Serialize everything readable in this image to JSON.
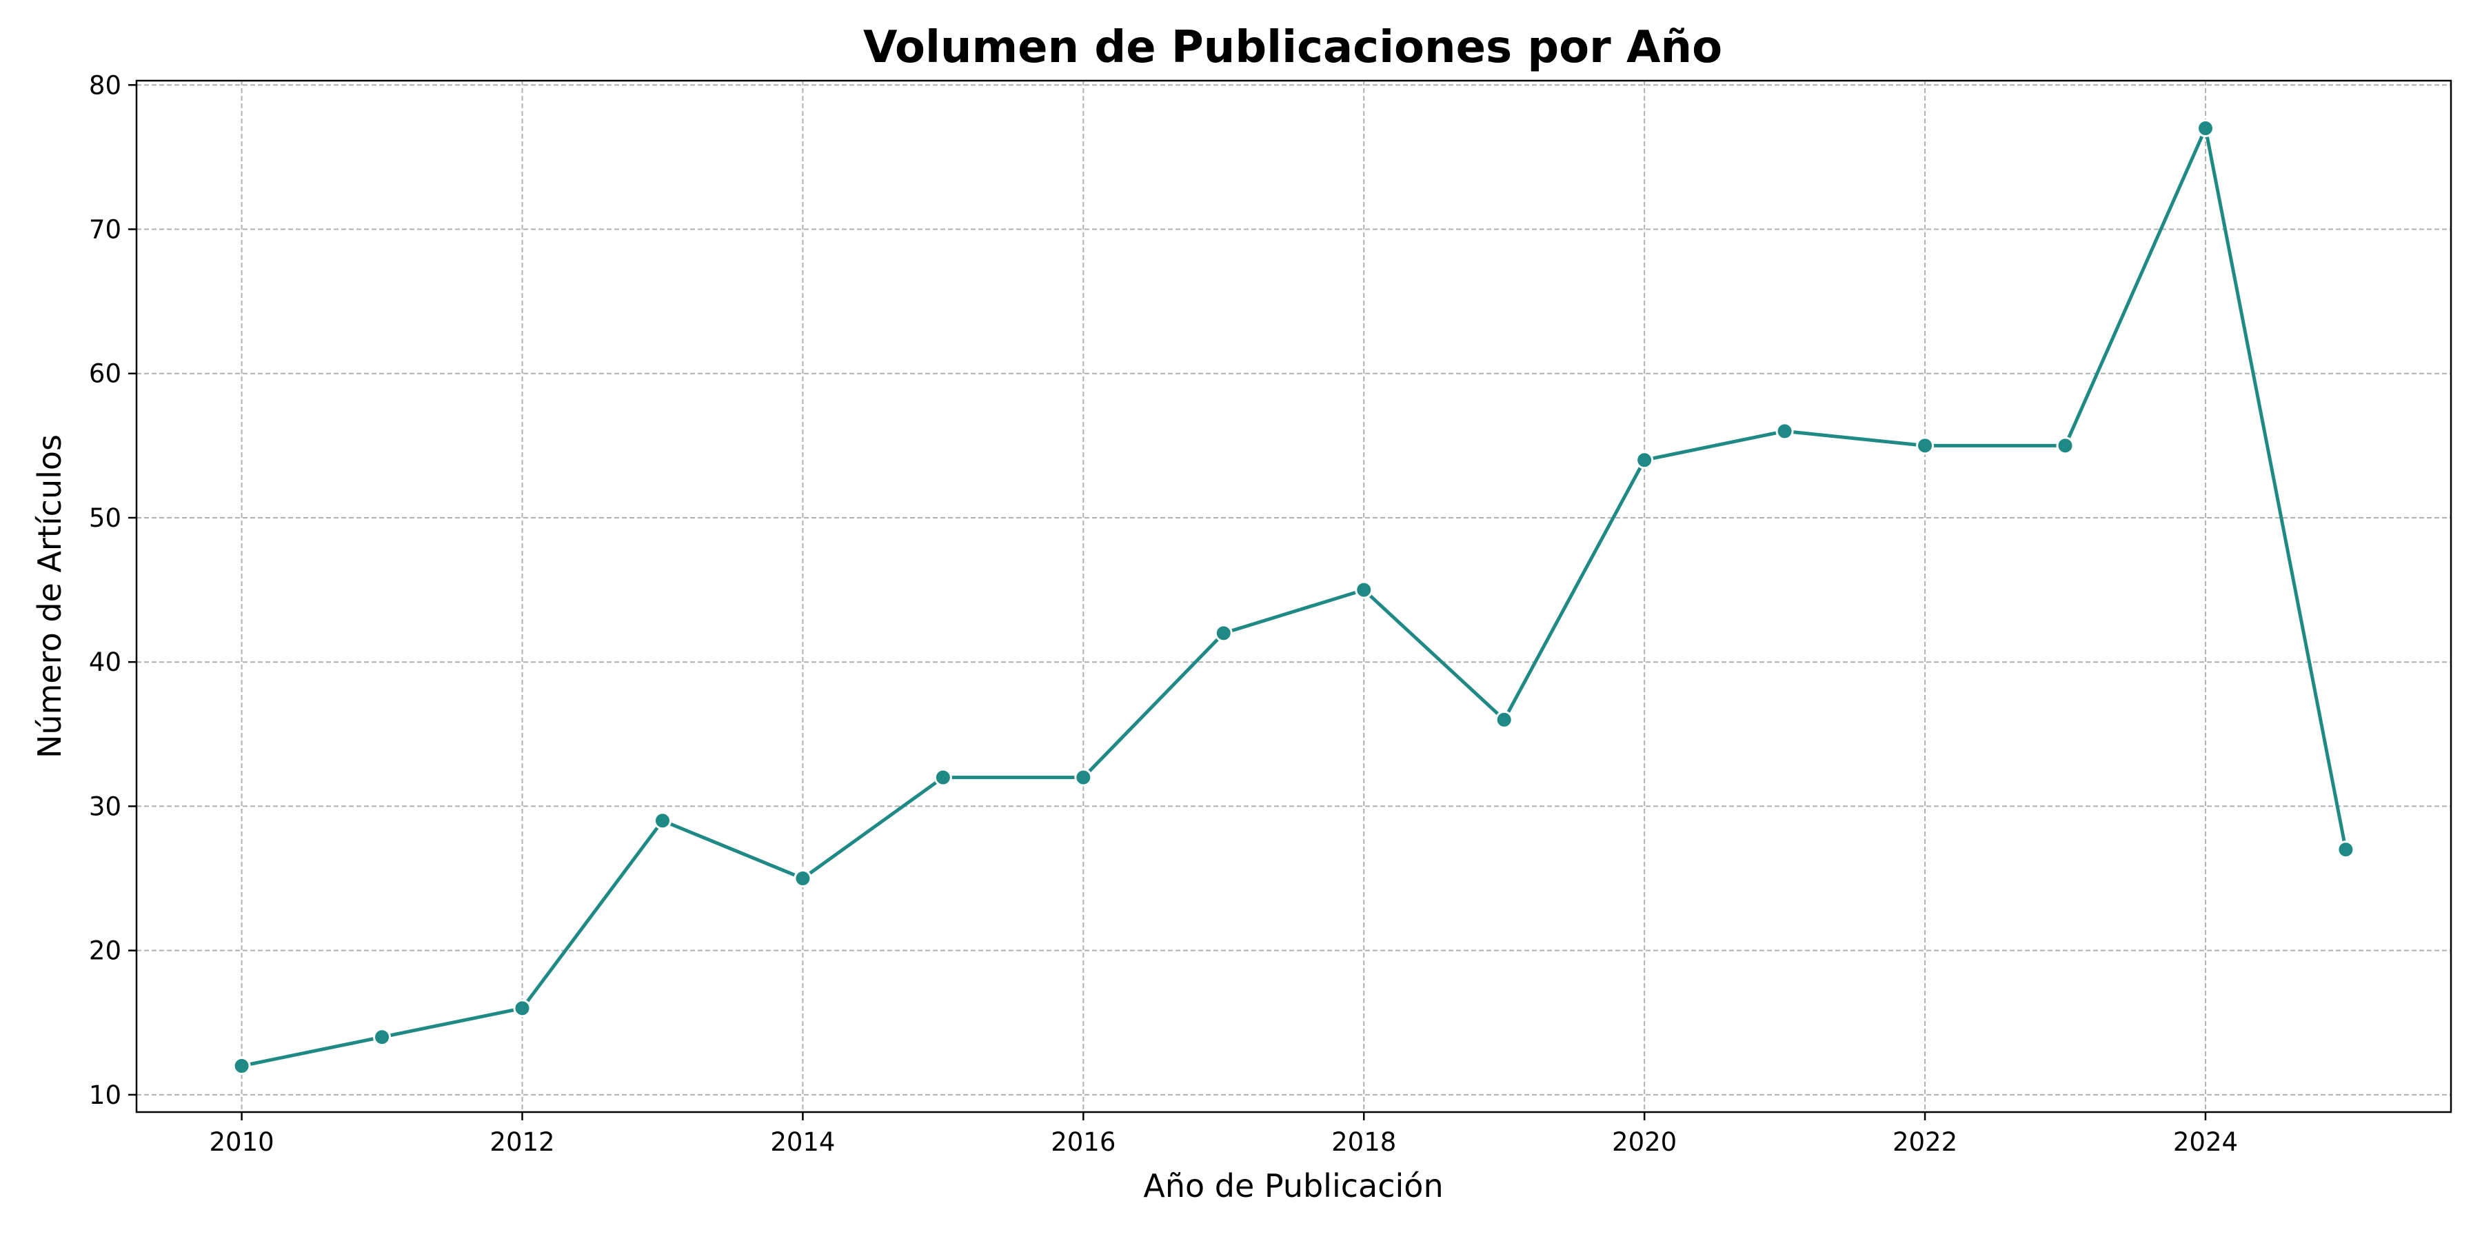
{
  "chart_data": {
    "type": "line",
    "title": "Volumen de Publicaciones por Año",
    "xlabel": "Año de Publicación",
    "ylabel": "Número de Artículos",
    "x": [
      2010,
      2011,
      2012,
      2013,
      2014,
      2015,
      2016,
      2017,
      2018,
      2019,
      2020,
      2021,
      2022,
      2023,
      2024,
      2025
    ],
    "series": [
      {
        "values": [
          12,
          14,
          16,
          29,
          25,
          32,
          32,
          42,
          45,
          36,
          54,
          56,
          55,
          55,
          77,
          27
        ],
        "color": "#1f8a85",
        "marker": "circle"
      }
    ],
    "xlim": [
      2009.25,
      2025.75
    ],
    "ylim": [
      8.8,
      80.3
    ],
    "xticks": [
      "2010",
      "2012",
      "2014",
      "2016",
      "2018",
      "2020",
      "2022",
      "2024"
    ],
    "yticks": [
      "10",
      "20",
      "30",
      "40",
      "50",
      "60",
      "70",
      "80"
    ],
    "grid": true
  }
}
